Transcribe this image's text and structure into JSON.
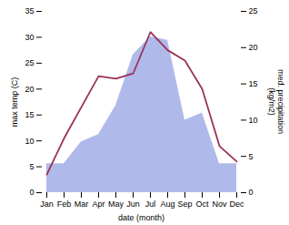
{
  "chart_data": {
    "type": "line",
    "xlabel": "date (month)",
    "ylabel": "max temp (C)",
    "y2label": "med. precipitation\n(kg/m2)",
    "categories": [
      "Jan",
      "Feb",
      "Mar",
      "Apr",
      "May",
      "Jun",
      "Jul",
      "Aug",
      "Sep",
      "Oct",
      "Nov",
      "Dec"
    ],
    "series": [
      {
        "type": "area",
        "color": "#b0baea",
        "axis": "y2",
        "values": [
          4.0,
          4.0,
          7.0,
          8.0,
          12.0,
          19.0,
          21.5,
          21.0,
          10.0,
          11.0,
          4.0,
          4.0
        ]
      },
      {
        "type": "line",
        "color": "#993355",
        "values": [
          3.5,
          10.5,
          16.5,
          22.5,
          22.0,
          23.0,
          31.0,
          27.5,
          25.5,
          20.0,
          9.0,
          6.0
        ]
      }
    ],
    "ylim": [
      0,
      35
    ],
    "yticks": [
      0,
      5,
      10,
      15,
      20,
      25,
      30,
      35
    ],
    "y2lim": [
      0,
      25
    ],
    "y2ticks": [
      0,
      5,
      10,
      15,
      20,
      25
    ]
  }
}
